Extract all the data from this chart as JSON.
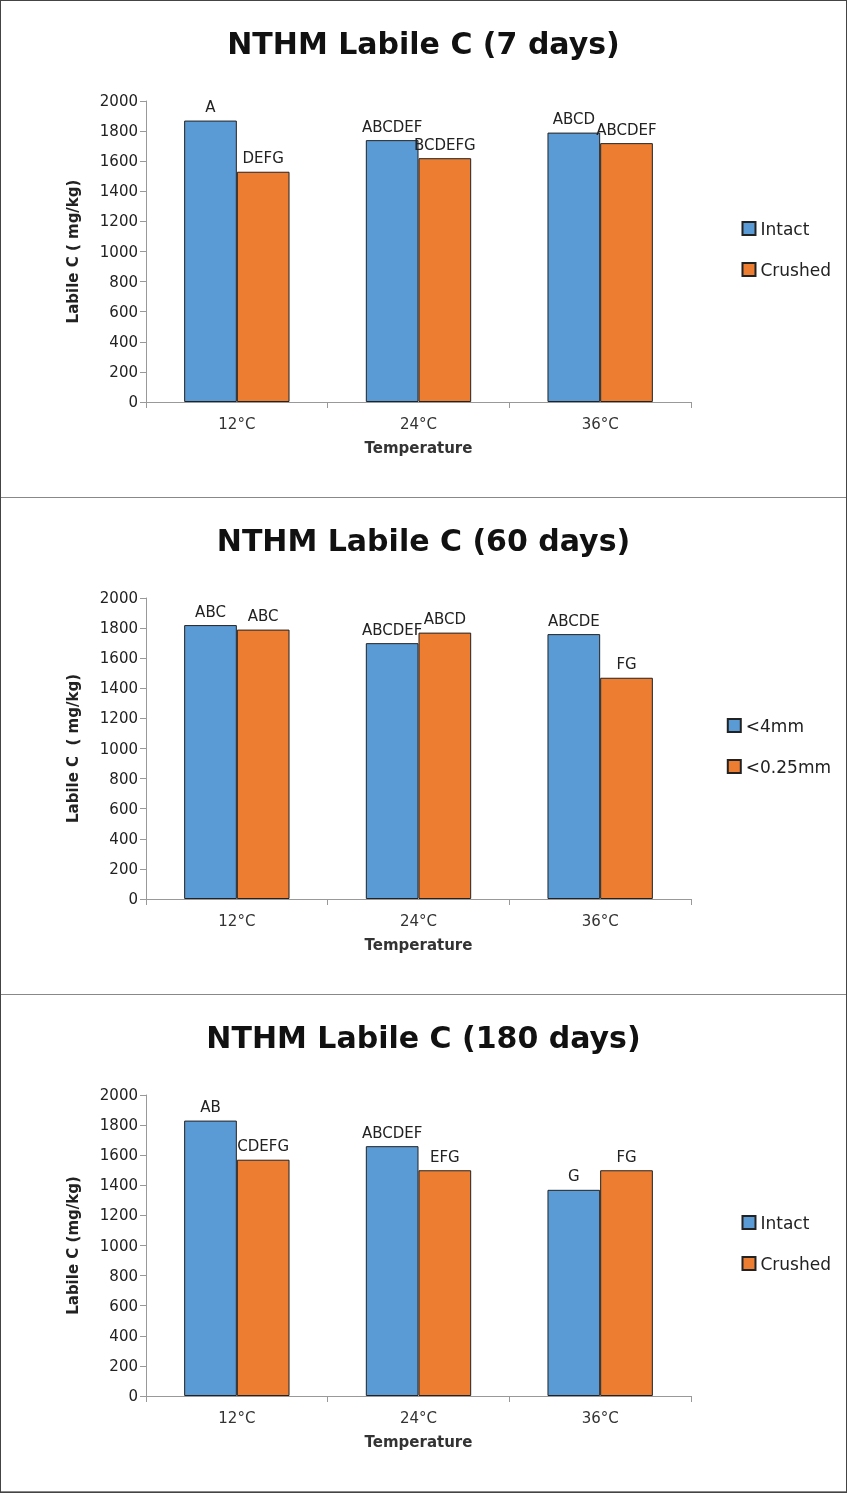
{
  "chart_data": [
    {
      "type": "bar",
      "title": "NTHM Labile C (7 days)",
      "xlabel": "Temperature",
      "ylabel": "Labile C ( mg/kg)",
      "categories": [
        "12°C",
        "24°C",
        "36°C"
      ],
      "series": [
        {
          "name": "Intact",
          "color": "#5b9bd5",
          "values": [
            1870,
            1740,
            1790
          ]
        },
        {
          "name": "Crushed",
          "color": "#ed7d31",
          "values": [
            1530,
            1620,
            1720
          ]
        }
      ],
      "ylim": [
        0,
        2000
      ],
      "yticks": [
        0,
        200,
        400,
        600,
        800,
        1000,
        1200,
        1400,
        1600,
        1800,
        2000
      ],
      "grid": false,
      "legend": "right",
      "annotations": [
        {
          "text": "A",
          "x": "12°C",
          "y": 1870
        },
        {
          "text": "DEFG",
          "x": "12°C",
          "y": 1530
        },
        {
          "text": "ABCDEF",
          "x": "24°C",
          "y": 1740
        },
        {
          "text": "BCDEFG",
          "x": "24°C",
          "y": 1620
        },
        {
          "text": "ABCD",
          "x": "36°C",
          "y": 1790
        },
        {
          "text": "ABCDEF",
          "x": "36°C",
          "y": 1720
        }
      ]
    },
    {
      "type": "bar",
      "title": "NTHM Labile C (60 days)",
      "xlabel": "Temperature",
      "ylabel": "Labile C  ( mg/kg)",
      "categories": [
        "12°C",
        "24°C",
        "36°C"
      ],
      "series": [
        {
          "name": "<4mm",
          "color": "#5b9bd5",
          "values": [
            1820,
            1700,
            1760
          ]
        },
        {
          "name": "<0.25mm",
          "color": "#ed7d31",
          "values": [
            1790,
            1770,
            1470
          ]
        }
      ],
      "ylim": [
        0,
        2000
      ],
      "yticks": [
        0,
        200,
        400,
        600,
        800,
        1000,
        1200,
        1400,
        1600,
        1800,
        2000
      ],
      "grid": false,
      "legend": "right",
      "annotations": [
        {
          "text": "ABC",
          "x": "12°C",
          "y": 1820
        },
        {
          "text": "ABC",
          "x": "12°C",
          "y": 1790
        },
        {
          "text": "ABCDEF",
          "x": "24°C",
          "y": 1700
        },
        {
          "text": "ABCD",
          "x": "24°C",
          "y": 1770
        },
        {
          "text": "ABCDE",
          "x": "36°C",
          "y": 1760
        },
        {
          "text": "FG",
          "x": "36°C",
          "y": 1470
        }
      ]
    },
    {
      "type": "bar",
      "title": "NTHM Labile C (180 days)",
      "xlabel": "Temperature",
      "ylabel": "Labile C (mg/kg)",
      "categories": [
        "12°C",
        "24°C",
        "36°C"
      ],
      "series": [
        {
          "name": "Intact",
          "color": "#5b9bd5",
          "values": [
            1830,
            1660,
            1370
          ]
        },
        {
          "name": "Crushed",
          "color": "#ed7d31",
          "values": [
            1570,
            1500,
            1500
          ]
        }
      ],
      "ylim": [
        0,
        2000
      ],
      "yticks": [
        0,
        200,
        400,
        600,
        800,
        1000,
        1200,
        1400,
        1600,
        1800,
        2000
      ],
      "grid": false,
      "legend": "right",
      "annotations": [
        {
          "text": "AB",
          "x": "12°C",
          "y": 1830
        },
        {
          "text": "CDEFG",
          "x": "12°C",
          "y": 1570
        },
        {
          "text": "ABCDEF",
          "x": "24°C",
          "y": 1660
        },
        {
          "text": "EFG",
          "x": "24°C",
          "y": 1500
        },
        {
          "text": "G",
          "x": "36°C",
          "y": 1370
        },
        {
          "text": "FG",
          "x": "36°C",
          "y": 1500
        }
      ]
    }
  ]
}
